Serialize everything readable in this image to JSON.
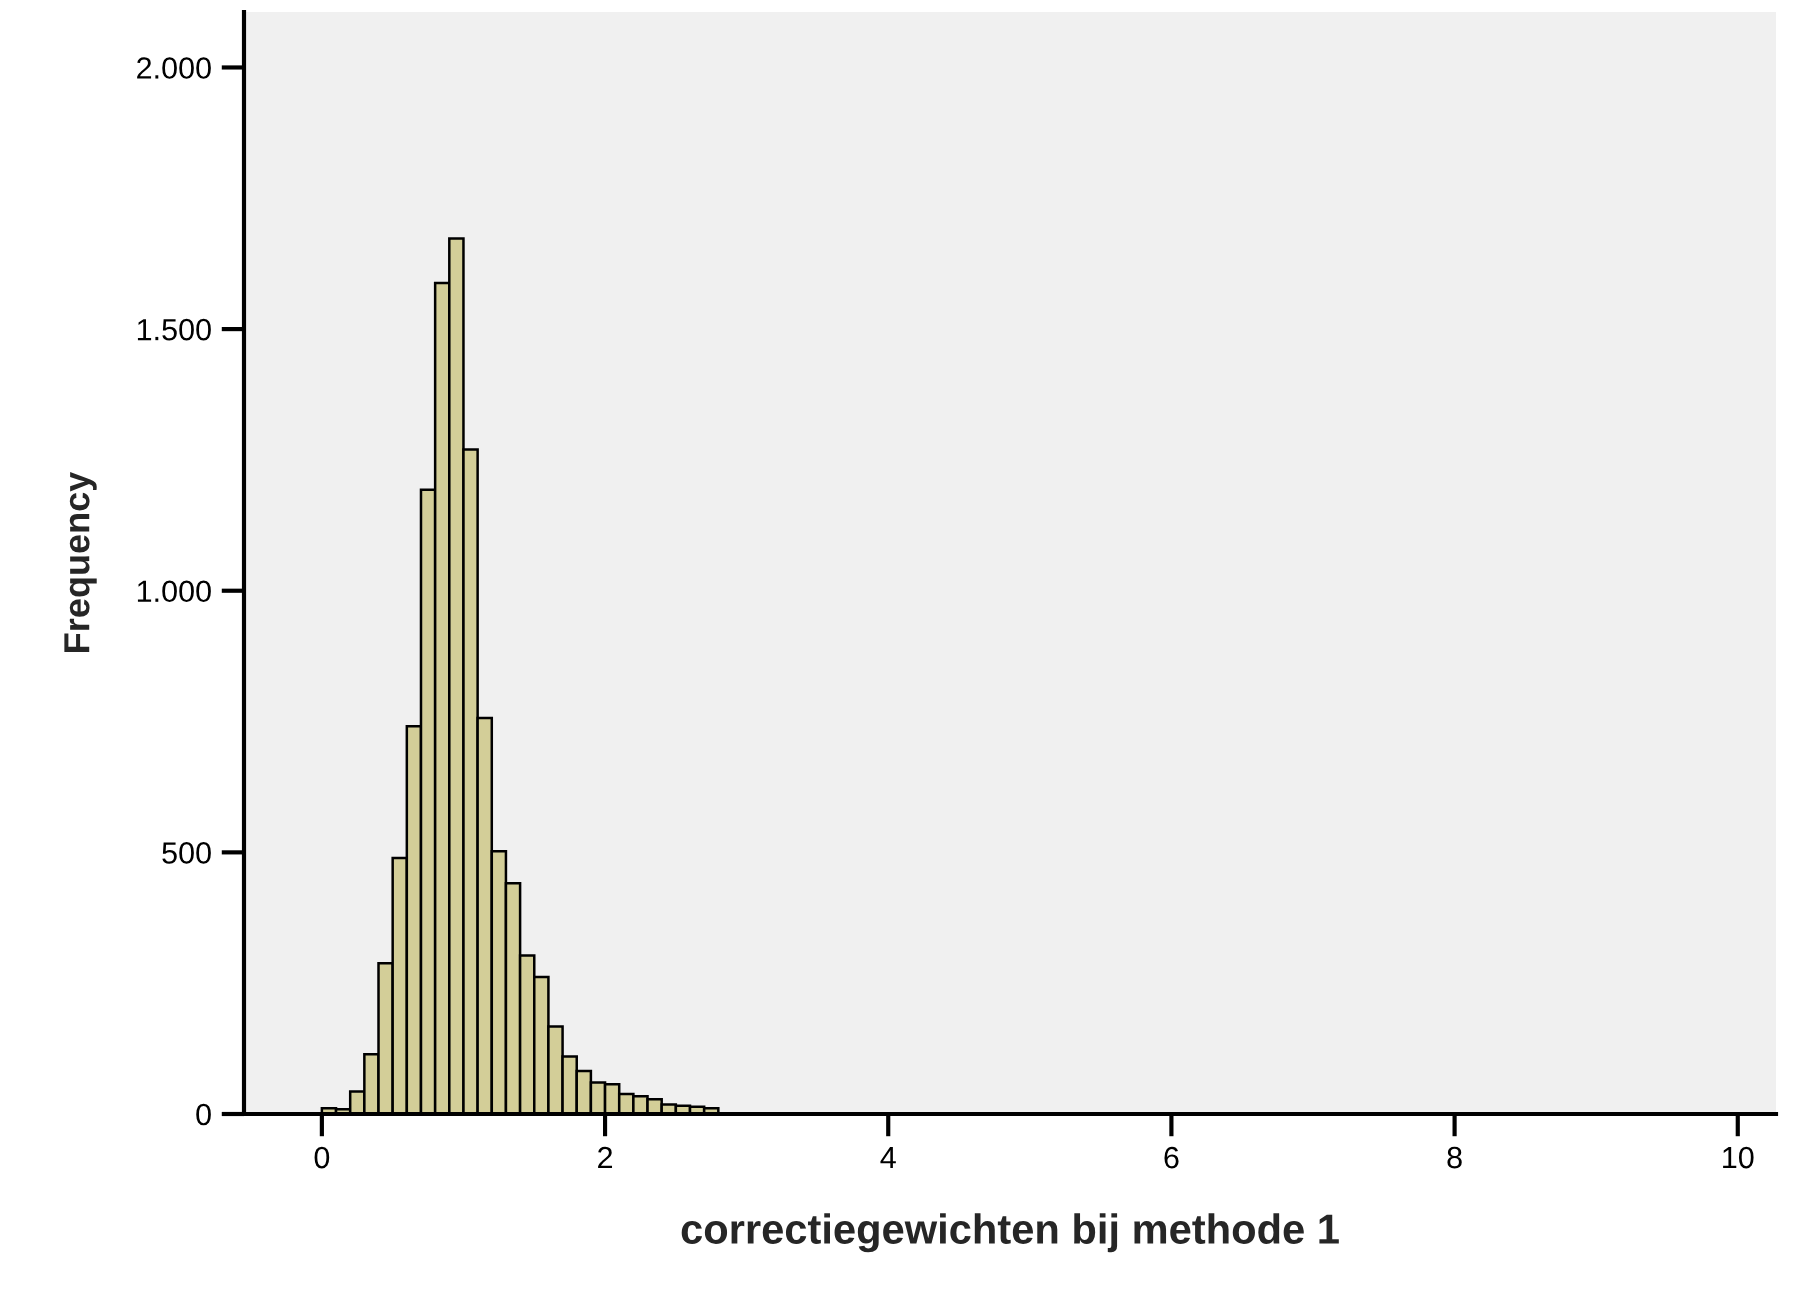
{
  "chart_data": {
    "type": "histogram",
    "xlabel": "correctiegewichten bij methode 1",
    "ylabel": "Frequency",
    "bins": [
      0,
      0.1,
      0.2,
      0.3,
      0.4,
      0.5,
      0.6,
      0.7,
      0.8,
      0.9,
      1.0,
      1.1,
      1.2,
      1.3,
      1.4,
      1.5,
      1.6,
      1.7,
      1.8,
      1.9,
      2.0,
      2.1,
      2.2,
      2.3,
      2.4,
      2.5,
      2.6,
      2.7,
      2.8
    ],
    "values": [
      11,
      9,
      43,
      114,
      288,
      489,
      741,
      1193,
      1588,
      1673,
      1270,
      757,
      502,
      441,
      303,
      262,
      167,
      110,
      82,
      60,
      57,
      38,
      34,
      28,
      18,
      16,
      14,
      11
    ],
    "color": "#d3ce98",
    "xlim": [
      -0.55,
      10.27
    ],
    "ylim": [
      0,
      2106
    ],
    "xticks": [
      0,
      2,
      4,
      6,
      8,
      10
    ],
    "yticks": [
      {
        "value": 0,
        "label": "0"
      },
      {
        "value": 500,
        "label": "500"
      },
      {
        "value": 1000,
        "label": "1.000"
      },
      {
        "value": 1500,
        "label": "1.500"
      },
      {
        "value": 2000,
        "label": "2.000"
      }
    ],
    "grid": false
  }
}
